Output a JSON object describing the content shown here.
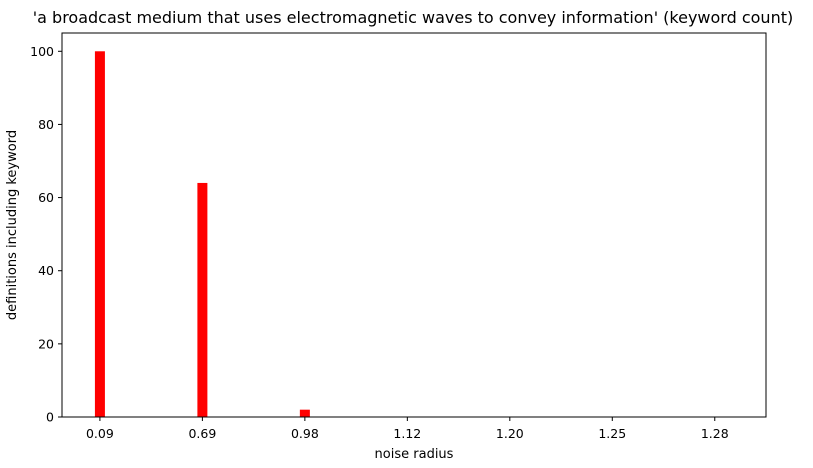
{
  "chart_data": {
    "type": "bar",
    "title": "'a broadcast medium that uses electromagnetic waves to convey information' (keyword count)",
    "xlabel": "noise radius",
    "ylabel": "definitions including keyword",
    "categories": [
      "0.09",
      "0.69",
      "0.98",
      "1.12",
      "1.20",
      "1.25",
      "1.28"
    ],
    "series": [
      {
        "values": [
          100,
          64,
          2,
          0,
          0,
          0,
          0
        ],
        "color": "#ff0000"
      }
    ],
    "ylim": [
      0,
      105
    ],
    "yticks": [
      0,
      20,
      40,
      60,
      80,
      100
    ],
    "grid": false,
    "legend": "none"
  }
}
